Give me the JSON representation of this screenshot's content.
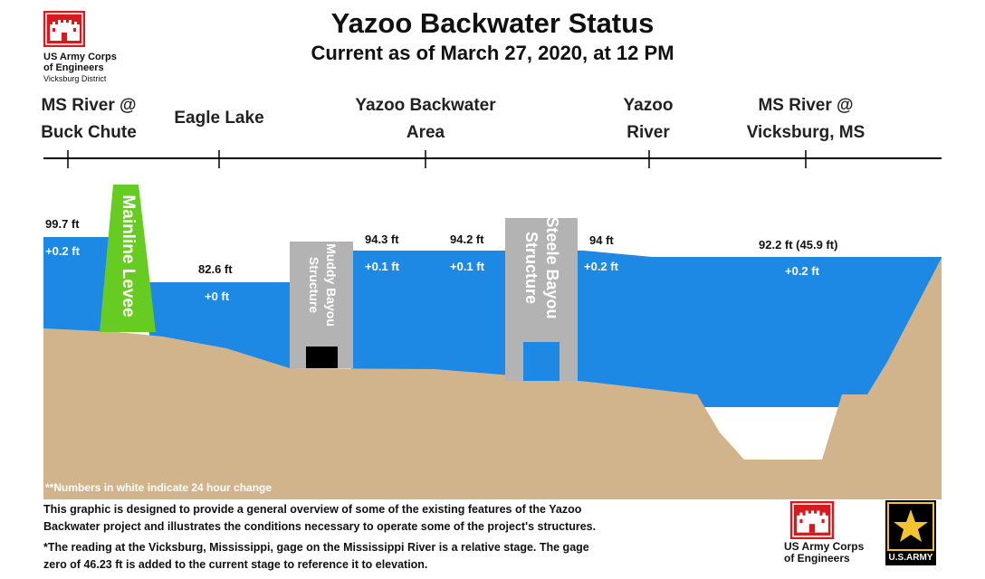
{
  "title": "Yazoo Backwater Status",
  "subtitle": "Current as of March 27, 2020, at 12 PM",
  "logo_top": {
    "line1": "US Army Corps",
    "line2": "of Engineers",
    "line3": "Vicksburg District"
  },
  "locations": [
    {
      "line1": "MS River @",
      "line2": "Buck Chute"
    },
    {
      "line1": "Eagle Lake",
      "line2": ""
    },
    {
      "line1": "Yazoo Backwater",
      "line2": "Area"
    },
    {
      "line1": "Yazoo",
      "line2": "River"
    },
    {
      "line1": "MS River @",
      "line2": "Vicksburg, MS"
    }
  ],
  "structures": {
    "levee": "Mainline Levee",
    "muddy_line1": "Muddy Bayou",
    "muddy_line2": "Structure",
    "steele_line1": "Steele Bayou",
    "steele_line2": "Structure"
  },
  "readings": [
    {
      "stage": "99.7 ft",
      "change": "+0.2 ft"
    },
    {
      "stage": "82.6 ft",
      "change": "+0 ft"
    },
    {
      "stage": "94.3 ft",
      "change": "+0.1 ft"
    },
    {
      "stage": "94.2 ft",
      "change": "+0.1 ft"
    },
    {
      "stage": "94 ft",
      "change": "+0.2 ft"
    },
    {
      "stage": "92.2 ft (45.9 ft)",
      "change": "+0.2 ft"
    }
  ],
  "legend_note": "**Numbers in white indicate 24 hour change",
  "footnote1_line1": "This graphic is designed to provide a general overview of some of the existing features of the Yazoo",
  "footnote1_line2": "Backwater project and illustrates the conditions necessary to operate some of the project's structures.",
  "footnote2_line1": "*The reading at the Vicksburg, Mississippi, gage on the Mississippi River is a relative stage. The gage",
  "footnote2_line2": "zero of 46.23 ft is added to the current stage to reference it to elevation.",
  "logo_bottom": {
    "line1": "US Army Corps",
    "line2": "of Engineers"
  },
  "army_logo": "U.S.ARMY",
  "colors": {
    "water": "#1e88e5",
    "ground": "#d2b48c",
    "levee": "#66cc22",
    "structure": "#b3b3b3",
    "gate": "#000000"
  },
  "icons": [
    "castle-logo-icon",
    "army-star-logo-icon"
  ]
}
